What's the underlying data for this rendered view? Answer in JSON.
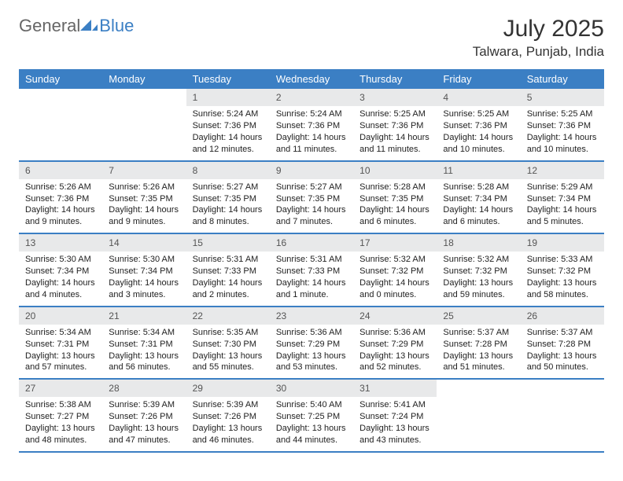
{
  "logo": {
    "part1": "General",
    "part2": "Blue"
  },
  "title": "July 2025",
  "location": "Talwara, Punjab, India",
  "colors": {
    "header_bg": "#3b7fc4",
    "header_text": "#ffffff",
    "daynum_bg": "#e8e9ea",
    "border": "#3b7fc4",
    "text": "#222222"
  },
  "day_names": [
    "Sunday",
    "Monday",
    "Tuesday",
    "Wednesday",
    "Thursday",
    "Friday",
    "Saturday"
  ],
  "weeks": [
    [
      {
        "empty": true
      },
      {
        "empty": true
      },
      {
        "day": "1",
        "sunrise": "Sunrise: 5:24 AM",
        "sunset": "Sunset: 7:36 PM",
        "daylight1": "Daylight: 14 hours",
        "daylight2": "and 12 minutes."
      },
      {
        "day": "2",
        "sunrise": "Sunrise: 5:24 AM",
        "sunset": "Sunset: 7:36 PM",
        "daylight1": "Daylight: 14 hours",
        "daylight2": "and 11 minutes."
      },
      {
        "day": "3",
        "sunrise": "Sunrise: 5:25 AM",
        "sunset": "Sunset: 7:36 PM",
        "daylight1": "Daylight: 14 hours",
        "daylight2": "and 11 minutes."
      },
      {
        "day": "4",
        "sunrise": "Sunrise: 5:25 AM",
        "sunset": "Sunset: 7:36 PM",
        "daylight1": "Daylight: 14 hours",
        "daylight2": "and 10 minutes."
      },
      {
        "day": "5",
        "sunrise": "Sunrise: 5:25 AM",
        "sunset": "Sunset: 7:36 PM",
        "daylight1": "Daylight: 14 hours",
        "daylight2": "and 10 minutes."
      }
    ],
    [
      {
        "day": "6",
        "sunrise": "Sunrise: 5:26 AM",
        "sunset": "Sunset: 7:36 PM",
        "daylight1": "Daylight: 14 hours",
        "daylight2": "and 9 minutes."
      },
      {
        "day": "7",
        "sunrise": "Sunrise: 5:26 AM",
        "sunset": "Sunset: 7:35 PM",
        "daylight1": "Daylight: 14 hours",
        "daylight2": "and 9 minutes."
      },
      {
        "day": "8",
        "sunrise": "Sunrise: 5:27 AM",
        "sunset": "Sunset: 7:35 PM",
        "daylight1": "Daylight: 14 hours",
        "daylight2": "and 8 minutes."
      },
      {
        "day": "9",
        "sunrise": "Sunrise: 5:27 AM",
        "sunset": "Sunset: 7:35 PM",
        "daylight1": "Daylight: 14 hours",
        "daylight2": "and 7 minutes."
      },
      {
        "day": "10",
        "sunrise": "Sunrise: 5:28 AM",
        "sunset": "Sunset: 7:35 PM",
        "daylight1": "Daylight: 14 hours",
        "daylight2": "and 6 minutes."
      },
      {
        "day": "11",
        "sunrise": "Sunrise: 5:28 AM",
        "sunset": "Sunset: 7:34 PM",
        "daylight1": "Daylight: 14 hours",
        "daylight2": "and 6 minutes."
      },
      {
        "day": "12",
        "sunrise": "Sunrise: 5:29 AM",
        "sunset": "Sunset: 7:34 PM",
        "daylight1": "Daylight: 14 hours",
        "daylight2": "and 5 minutes."
      }
    ],
    [
      {
        "day": "13",
        "sunrise": "Sunrise: 5:30 AM",
        "sunset": "Sunset: 7:34 PM",
        "daylight1": "Daylight: 14 hours",
        "daylight2": "and 4 minutes."
      },
      {
        "day": "14",
        "sunrise": "Sunrise: 5:30 AM",
        "sunset": "Sunset: 7:34 PM",
        "daylight1": "Daylight: 14 hours",
        "daylight2": "and 3 minutes."
      },
      {
        "day": "15",
        "sunrise": "Sunrise: 5:31 AM",
        "sunset": "Sunset: 7:33 PM",
        "daylight1": "Daylight: 14 hours",
        "daylight2": "and 2 minutes."
      },
      {
        "day": "16",
        "sunrise": "Sunrise: 5:31 AM",
        "sunset": "Sunset: 7:33 PM",
        "daylight1": "Daylight: 14 hours",
        "daylight2": "and 1 minute."
      },
      {
        "day": "17",
        "sunrise": "Sunrise: 5:32 AM",
        "sunset": "Sunset: 7:32 PM",
        "daylight1": "Daylight: 14 hours",
        "daylight2": "and 0 minutes."
      },
      {
        "day": "18",
        "sunrise": "Sunrise: 5:32 AM",
        "sunset": "Sunset: 7:32 PM",
        "daylight1": "Daylight: 13 hours",
        "daylight2": "and 59 minutes."
      },
      {
        "day": "19",
        "sunrise": "Sunrise: 5:33 AM",
        "sunset": "Sunset: 7:32 PM",
        "daylight1": "Daylight: 13 hours",
        "daylight2": "and 58 minutes."
      }
    ],
    [
      {
        "day": "20",
        "sunrise": "Sunrise: 5:34 AM",
        "sunset": "Sunset: 7:31 PM",
        "daylight1": "Daylight: 13 hours",
        "daylight2": "and 57 minutes."
      },
      {
        "day": "21",
        "sunrise": "Sunrise: 5:34 AM",
        "sunset": "Sunset: 7:31 PM",
        "daylight1": "Daylight: 13 hours",
        "daylight2": "and 56 minutes."
      },
      {
        "day": "22",
        "sunrise": "Sunrise: 5:35 AM",
        "sunset": "Sunset: 7:30 PM",
        "daylight1": "Daylight: 13 hours",
        "daylight2": "and 55 minutes."
      },
      {
        "day": "23",
        "sunrise": "Sunrise: 5:36 AM",
        "sunset": "Sunset: 7:29 PM",
        "daylight1": "Daylight: 13 hours",
        "daylight2": "and 53 minutes."
      },
      {
        "day": "24",
        "sunrise": "Sunrise: 5:36 AM",
        "sunset": "Sunset: 7:29 PM",
        "daylight1": "Daylight: 13 hours",
        "daylight2": "and 52 minutes."
      },
      {
        "day": "25",
        "sunrise": "Sunrise: 5:37 AM",
        "sunset": "Sunset: 7:28 PM",
        "daylight1": "Daylight: 13 hours",
        "daylight2": "and 51 minutes."
      },
      {
        "day": "26",
        "sunrise": "Sunrise: 5:37 AM",
        "sunset": "Sunset: 7:28 PM",
        "daylight1": "Daylight: 13 hours",
        "daylight2": "and 50 minutes."
      }
    ],
    [
      {
        "day": "27",
        "sunrise": "Sunrise: 5:38 AM",
        "sunset": "Sunset: 7:27 PM",
        "daylight1": "Daylight: 13 hours",
        "daylight2": "and 48 minutes."
      },
      {
        "day": "28",
        "sunrise": "Sunrise: 5:39 AM",
        "sunset": "Sunset: 7:26 PM",
        "daylight1": "Daylight: 13 hours",
        "daylight2": "and 47 minutes."
      },
      {
        "day": "29",
        "sunrise": "Sunrise: 5:39 AM",
        "sunset": "Sunset: 7:26 PM",
        "daylight1": "Daylight: 13 hours",
        "daylight2": "and 46 minutes."
      },
      {
        "day": "30",
        "sunrise": "Sunrise: 5:40 AM",
        "sunset": "Sunset: 7:25 PM",
        "daylight1": "Daylight: 13 hours",
        "daylight2": "and 44 minutes."
      },
      {
        "day": "31",
        "sunrise": "Sunrise: 5:41 AM",
        "sunset": "Sunset: 7:24 PM",
        "daylight1": "Daylight: 13 hours",
        "daylight2": "and 43 minutes."
      },
      {
        "empty": true
      },
      {
        "empty": true
      }
    ]
  ]
}
